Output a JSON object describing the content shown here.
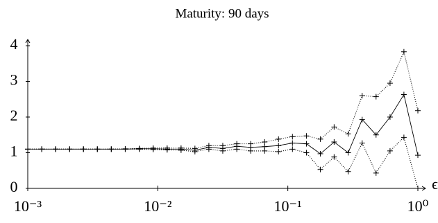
{
  "chart_data": {
    "type": "line",
    "title": "Maturity: 90 days",
    "xlabel": "ϵ",
    "xscale": "log",
    "x": [
      0.001,
      0.00128,
      0.00164,
      0.0021,
      0.00268,
      0.00343,
      0.00439,
      0.00562,
      0.0072,
      0.00921,
      0.0118,
      0.0151,
      0.0193,
      0.0247,
      0.0316,
      0.0405,
      0.0518,
      0.0663,
      0.0848,
      0.1085,
      0.139,
      0.178,
      0.227,
      0.291,
      0.373,
      0.477,
      0.611,
      0.781,
      1.0
    ],
    "series": [
      {
        "color": "#000000",
        "line_style": "solid",
        "values": [
          1.1,
          1.1,
          1.1,
          1.1,
          1.1,
          1.1,
          1.1,
          1.1,
          1.11,
          1.11,
          1.1,
          1.1,
          1.07,
          1.15,
          1.12,
          1.18,
          1.15,
          1.17,
          1.2,
          1.27,
          1.25,
          0.97,
          1.3,
          1.0,
          1.93,
          1.5,
          2.0,
          2.63,
          0.93
        ]
      },
      {
        "color": "#000000",
        "line_style": "dotted",
        "values": [
          1.1,
          1.1,
          1.1,
          1.1,
          1.1,
          1.1,
          1.1,
          1.11,
          1.12,
          1.13,
          1.13,
          1.13,
          1.12,
          1.2,
          1.2,
          1.25,
          1.25,
          1.3,
          1.38,
          1.45,
          1.47,
          1.38,
          1.72,
          1.53,
          2.6,
          2.57,
          2.95,
          3.83,
          2.18
        ]
      },
      {
        "color": "#000000",
        "line_style": "dotted",
        "values": [
          1.1,
          1.1,
          1.1,
          1.1,
          1.1,
          1.1,
          1.1,
          1.1,
          1.1,
          1.09,
          1.08,
          1.07,
          1.03,
          1.1,
          1.05,
          1.1,
          1.05,
          1.05,
          1.03,
          1.1,
          1.0,
          0.53,
          0.88,
          0.47,
          1.27,
          0.43,
          1.05,
          1.43,
          0
        ]
      }
    ],
    "xlim": [
      0.001,
      1
    ],
    "ylim": [
      0,
      4
    ],
    "xticks": [
      {
        "value": 0.001,
        "label": "10⁻³"
      },
      {
        "value": 0.01,
        "label": "10⁻²"
      },
      {
        "value": 0.1,
        "label": "10⁻¹"
      },
      {
        "value": 1,
        "label": "10⁰"
      }
    ],
    "yticks": [
      0,
      1,
      2,
      3,
      4
    ],
    "grid": false
  }
}
